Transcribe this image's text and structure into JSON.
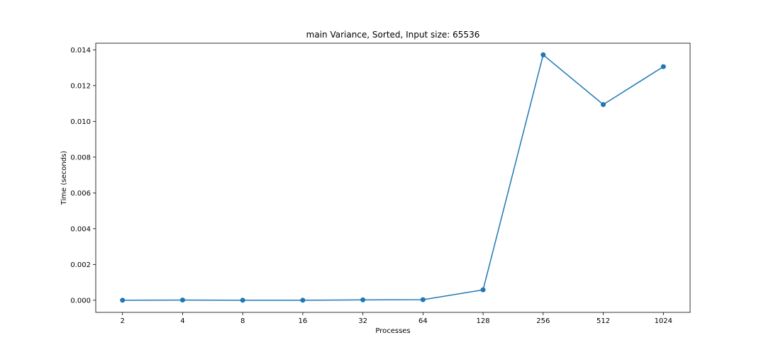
{
  "chart_data": {
    "type": "line",
    "title": "main Variance, Sorted, Input size: 65536",
    "xlabel": "Processes",
    "ylabel": "Time (seconds)",
    "categories": [
      "2",
      "4",
      "8",
      "16",
      "32",
      "64",
      "128",
      "256",
      "512",
      "1024"
    ],
    "series": [
      {
        "values": [
          0.0,
          1e-05,
          0.0,
          0.0,
          2e-05,
          3e-05,
          0.00058,
          0.01372,
          0.01094,
          0.01306
        ]
      }
    ],
    "ylim": [
      -0.00068,
      0.01437
    ],
    "yticks": [
      0.0,
      0.002,
      0.004,
      0.006,
      0.008,
      0.01,
      0.012,
      0.014
    ],
    "ytick_labels": [
      "0.000",
      "0.002",
      "0.004",
      "0.006",
      "0.008",
      "0.010",
      "0.012",
      "0.014"
    ],
    "grid": false,
    "marker": "circle",
    "line_color": "#1f77b4"
  }
}
